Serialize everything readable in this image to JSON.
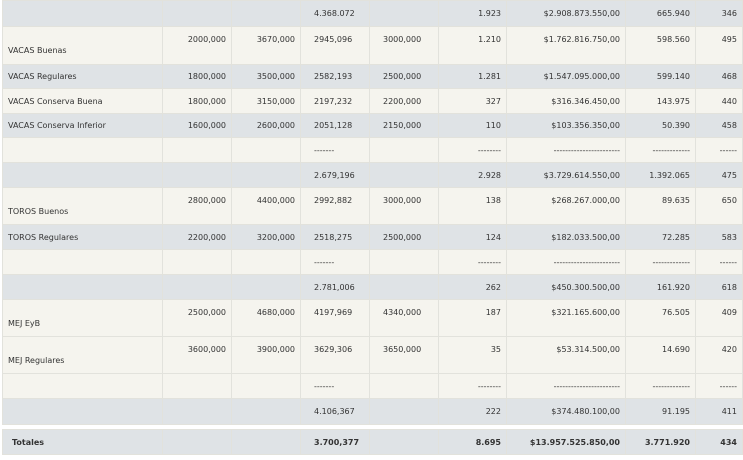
{
  "table": {
    "rows": [
      [
        null,
        null,
        null,
        "4.368.072",
        null,
        "1.923",
        "$2.908.873.550,00",
        "665.940",
        "346"
      ],
      [
        "VACAS Buenas",
        "2000,000",
        "3670,000",
        "2945,096",
        "3000,000",
        "1.210",
        "$1.762.816.750,00",
        "598.560",
        "495"
      ],
      [
        "VACAS Regulares",
        "1800,000",
        "3500,000",
        "2582,193",
        "2500,000",
        "1.281",
        "$1.547.095.000,00",
        "599.140",
        "468"
      ],
      [
        "VACAS Conserva Buena",
        "1800,000",
        "3150,000",
        "2197,232",
        "2200,000",
        "327",
        "$316.346.450,00",
        "143.975",
        "440"
      ],
      [
        "VACAS Conserva Inferior",
        "1600,000",
        "2600,000",
        "2051,128",
        "2150,000",
        "110",
        "$103.356.350,00",
        "50.390",
        "458"
      ],
      [
        null,
        null,
        null,
        "-------",
        null,
        "--------",
        "-----------------------",
        "-------------",
        "------"
      ],
      [
        null,
        null,
        null,
        "2.679,196",
        null,
        "2.928",
        "$3.729.614.550,00",
        "1.392.065",
        "475"
      ],
      [
        "TOROS Buenos",
        "2800,000",
        "4400,000",
        "2992,882",
        "3000,000",
        "138",
        "$268.267.000,00",
        "89.635",
        "650"
      ],
      [
        "TOROS Regulares",
        "2200,000",
        "3200,000",
        "2518,275",
        "2500,000",
        "124",
        "$182.033.500,00",
        "72.285",
        "583"
      ],
      [
        null,
        null,
        null,
        "-------",
        null,
        "--------",
        "-----------------------",
        "-------------",
        "------"
      ],
      [
        null,
        null,
        null,
        "2.781,006",
        null,
        "262",
        "$450.300.500,00",
        "161.920",
        "618"
      ],
      [
        "MEJ EyB",
        "2500,000",
        "4680,000",
        "4197,969",
        "4340,000",
        "187",
        "$321.165.600,00",
        "76.505",
        "409"
      ],
      [
        "MEJ Regulares",
        "3600,000",
        "3900,000",
        "3629,306",
        "3650,000",
        "35",
        "$53.314.500,00",
        "14.690",
        "420"
      ],
      [
        null,
        null,
        null,
        "-------",
        null,
        "--------",
        "-----------------------",
        "-------------",
        "------"
      ],
      [
        null,
        null,
        null,
        "4.106,367",
        null,
        "222",
        "$374.480.100,00",
        "91.195",
        "411"
      ]
    ],
    "totals": [
      "Totales",
      null,
      null,
      "3.700,377",
      null,
      "8.695",
      "$13.957.525.850,00",
      "3.771.920",
      "434"
    ]
  }
}
